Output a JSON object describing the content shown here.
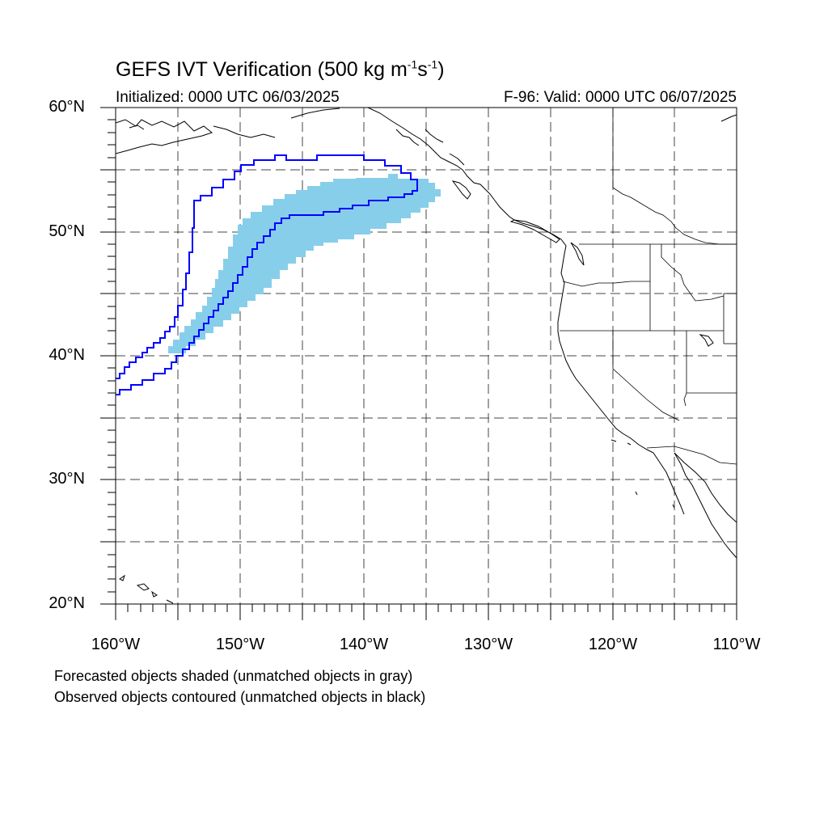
{
  "title": {
    "main": "GEFS IVT Verification (500 kg m",
    "exp1": "-1",
    "mid": "s",
    "exp2": "-1",
    "end": ")"
  },
  "subtitle_left": "Initialized: 0000 UTC 06/03/2025",
  "subtitle_right": "F-96: Valid: 0000 UTC 06/07/2025",
  "axes": {
    "lat_labels": [
      "60°N",
      "50°N",
      "40°N",
      "30°N",
      "20°N"
    ],
    "lon_labels": [
      "160°W",
      "150°W",
      "140°W",
      "130°W",
      "120°W",
      "110°W"
    ],
    "lat_range": [
      20,
      60
    ],
    "lon_range": [
      -160,
      -110
    ],
    "grid": "dashed, every 5°"
  },
  "legend_notes": [
    "Forecasted objects shaded (unmatched objects in gray)",
    "Observed objects contoured (unmatched objects in black)"
  ],
  "colors": {
    "forecast_fill": "#87ceeb",
    "observed_contour": "#0000ff",
    "coastline": "#000000",
    "grid": "#444444"
  }
}
